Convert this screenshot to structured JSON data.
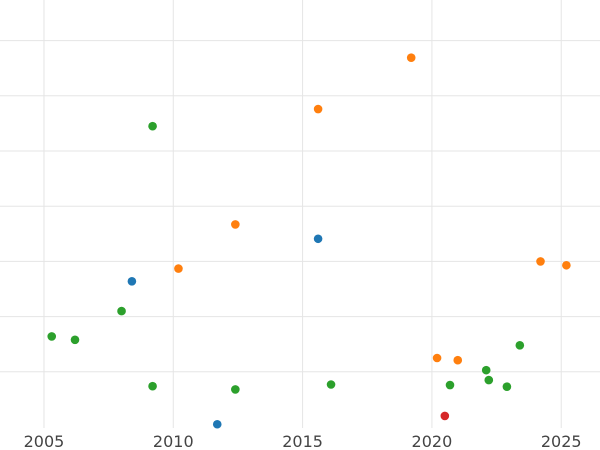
{
  "chart_data": {
    "type": "scatter",
    "title": "",
    "xlabel": "",
    "ylabel": "",
    "xlim": [
      2003.3,
      2026.5
    ],
    "ylim": [
      0,
      10
    ],
    "x_ticks": [
      2005,
      2010,
      2015,
      2020,
      2025
    ],
    "y_ticks": [
      1,
      2,
      3,
      4,
      5,
      6,
      7,
      8,
      9,
      10
    ],
    "grid": true,
    "legend": "none",
    "series": [
      {
        "color": "#1f77b4",
        "points": [
          {
            "x": 2008.4,
            "y": 2.64
          },
          {
            "x": 2011.7,
            "y": 0.05
          },
          {
            "x": 2015.6,
            "y": 3.41
          }
        ]
      },
      {
        "color": "#ff7f0e",
        "points": [
          {
            "x": 2010.2,
            "y": 2.87
          },
          {
            "x": 2012.4,
            "y": 3.67
          },
          {
            "x": 2015.6,
            "y": 5.76
          },
          {
            "x": 2019.2,
            "y": 6.69
          },
          {
            "x": 2020.2,
            "y": 1.25
          },
          {
            "x": 2021.0,
            "y": 1.21
          },
          {
            "x": 2024.2,
            "y": 3.0
          },
          {
            "x": 2025.2,
            "y": 2.93
          }
        ]
      },
      {
        "color": "#2ca02c",
        "points": [
          {
            "x": 2005.3,
            "y": 1.64
          },
          {
            "x": 2006.2,
            "y": 1.58
          },
          {
            "x": 2008.0,
            "y": 2.1
          },
          {
            "x": 2009.2,
            "y": 5.45
          },
          {
            "x": 2009.2,
            "y": 0.74
          },
          {
            "x": 2012.4,
            "y": 0.68
          },
          {
            "x": 2016.1,
            "y": 0.77
          },
          {
            "x": 2020.7,
            "y": 0.76
          },
          {
            "x": 2022.1,
            "y": 1.03
          },
          {
            "x": 2022.2,
            "y": 0.85
          },
          {
            "x": 2022.9,
            "y": 0.73
          },
          {
            "x": 2023.4,
            "y": 1.48
          }
        ]
      },
      {
        "color": "#d62728",
        "points": [
          {
            "x": 2020.5,
            "y": 0.2
          }
        ]
      }
    ]
  }
}
